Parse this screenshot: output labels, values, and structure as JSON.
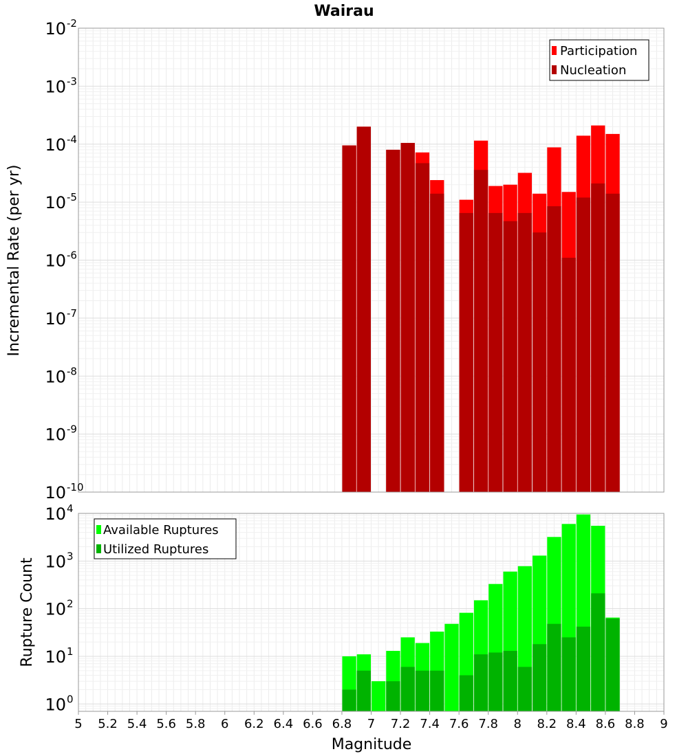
{
  "chart_data": [
    {
      "type": "bar",
      "title": "Wairau",
      "xlabel": "",
      "ylabel": "Incremental Rate (per yr)",
      "yscale": "log",
      "ylim": [
        1e-10,
        0.01
      ],
      "xlim": [
        5,
        9
      ],
      "y_ticks": [
        {
          "base": "10",
          "exp": "-10"
        },
        {
          "base": "10",
          "exp": "-9"
        },
        {
          "base": "10",
          "exp": "-8"
        },
        {
          "base": "10",
          "exp": "-7"
        },
        {
          "base": "10",
          "exp": "-6"
        },
        {
          "base": "10",
          "exp": "-5"
        },
        {
          "base": "10",
          "exp": "-4"
        },
        {
          "base": "10",
          "exp": "-3"
        },
        {
          "base": "10",
          "exp": "-2"
        }
      ],
      "grid": true,
      "legend_position": "top-right",
      "x": [
        6.85,
        6.95,
        7.15,
        7.25,
        7.35,
        7.45,
        7.65,
        7.75,
        7.85,
        7.95,
        8.05,
        8.15,
        8.25,
        8.35,
        8.45,
        8.55,
        8.65
      ],
      "series": [
        {
          "name": "Participation",
          "color": "#ff0000",
          "values": [
            9.5e-05,
            0.0002,
            8e-05,
            0.000105,
            7.2e-05,
            2.4e-05,
            1.1e-05,
            0.000115,
            1.9e-05,
            2e-05,
            3.2e-05,
            1.4e-05,
            8.8e-05,
            1.5e-05,
            0.00014,
            0.00021,
            0.00015
          ]
        },
        {
          "name": "Nucleation",
          "color": "#b30000",
          "values": [
            9.5e-05,
            0.0002,
            8e-05,
            0.000105,
            4.7e-05,
            1.4e-05,
            6.5e-06,
            3.6e-05,
            6.5e-06,
            4.7e-06,
            6.5e-06,
            3e-06,
            8.5e-06,
            1.1e-06,
            1.2e-05,
            2.1e-05,
            1.4e-05
          ]
        }
      ]
    },
    {
      "type": "bar",
      "title": "",
      "xlabel": "Magnitude",
      "ylabel": "Rupture Count",
      "yscale": "log",
      "ylim": [
        0.7,
        10000
      ],
      "xlim": [
        5,
        9
      ],
      "x_ticks": [
        "5",
        "5.2",
        "5.4",
        "5.6",
        "5.8",
        "6",
        "6.2",
        "6.4",
        "6.6",
        "6.8",
        "7",
        "7.2",
        "7.4",
        "7.6",
        "7.8",
        "8",
        "8.2",
        "8.4",
        "8.6",
        "8.8",
        "9"
      ],
      "y_ticks": [
        {
          "base": "10",
          "exp": "0"
        },
        {
          "base": "10",
          "exp": "1"
        },
        {
          "base": "10",
          "exp": "2"
        },
        {
          "base": "10",
          "exp": "3"
        },
        {
          "base": "10",
          "exp": "4"
        }
      ],
      "grid": true,
      "legend_position": "top-left",
      "x": [
        6.85,
        6.95,
        7.05,
        7.15,
        7.25,
        7.35,
        7.45,
        7.55,
        7.65,
        7.75,
        7.85,
        7.95,
        8.05,
        8.15,
        8.25,
        8.35,
        8.45,
        8.55,
        8.65
      ],
      "series": [
        {
          "name": "Available Ruptures",
          "color": "#00ff00",
          "values": [
            10,
            11,
            3,
            13,
            25,
            19,
            33,
            48,
            82,
            150,
            330,
            600,
            780,
            1300,
            3200,
            6000,
            9500,
            5500,
            65
          ]
        },
        {
          "name": "Utilized Ruptures",
          "color": "#00b300",
          "values": [
            2,
            5,
            0,
            3,
            6,
            5,
            5,
            0,
            4,
            11,
            12,
            13,
            6,
            18,
            48,
            25,
            42,
            210,
            62
          ]
        }
      ]
    }
  ]
}
